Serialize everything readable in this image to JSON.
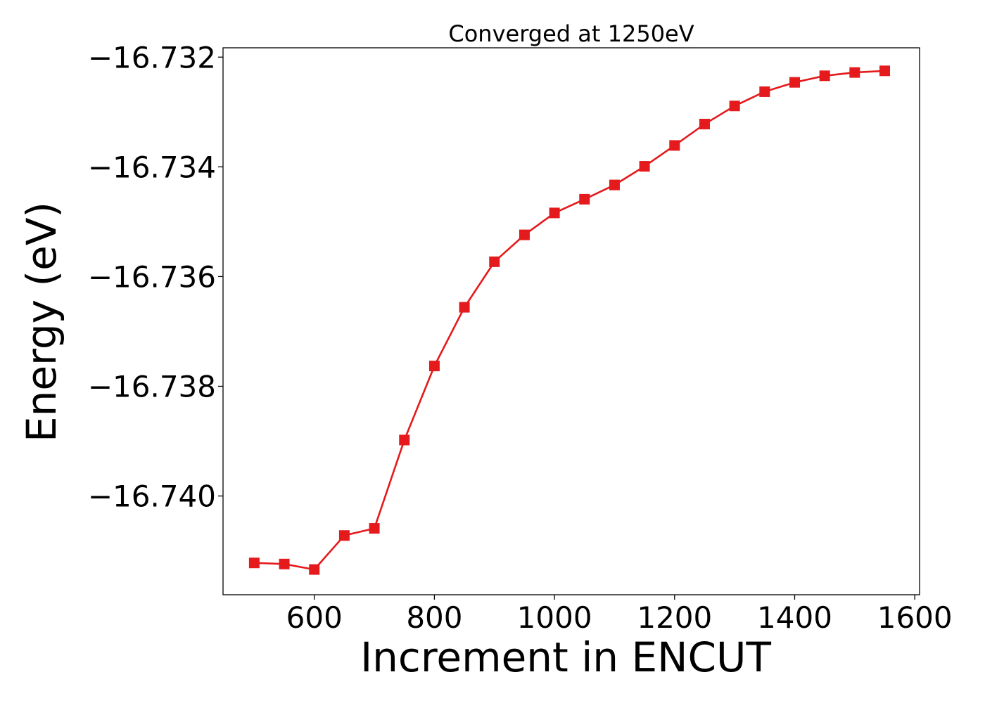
{
  "chart_data": {
    "type": "line",
    "title": "Converged at 1250eV",
    "xlabel": "Increment in ENCUT",
    "ylabel": "Energy (eV)",
    "xlim": [
      448,
      1608
    ],
    "ylim": [
      -16.7418,
      -16.73183
    ],
    "xticks": [
      600,
      800,
      1000,
      1200,
      1400,
      1600
    ],
    "yticks": [
      -16.74,
      -16.738,
      -16.736,
      -16.734,
      -16.732
    ],
    "ytick_labels": [
      "−16.740",
      "−16.738",
      "−16.736",
      "−16.734",
      "−16.732"
    ],
    "grid": false,
    "marker": "square",
    "series": [
      {
        "color": "#e41a1c",
        "x": [
          500,
          550,
          600,
          650,
          700,
          750,
          800,
          850,
          900,
          950,
          1000,
          1050,
          1100,
          1150,
          1200,
          1250,
          1300,
          1350,
          1400,
          1450,
          1500,
          1550
        ],
        "y": [
          -16.74122,
          -16.74124,
          -16.74134,
          -16.74072,
          -16.74059,
          -16.73898,
          -16.73763,
          -16.73656,
          -16.73573,
          -16.73524,
          -16.73484,
          -16.73459,
          -16.73433,
          -16.73399,
          -16.73361,
          -16.73322,
          -16.73289,
          -16.73263,
          -16.73246,
          -16.73234,
          -16.73228,
          -16.73225
        ]
      }
    ]
  }
}
